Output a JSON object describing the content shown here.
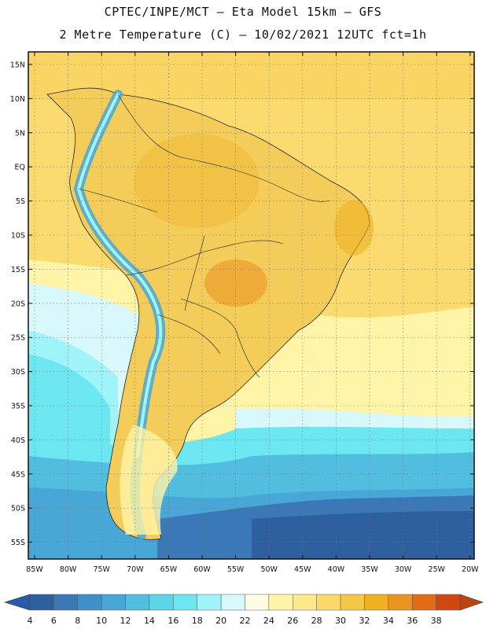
{
  "header": {
    "line1": "CPTEC/INPE/MCT –  Eta Model 15km – GFS",
    "line2": "2 Metre Temperature (C) – 10/02/2021 12UTC fct=1h"
  },
  "lat_labels": [
    "15N",
    "10N",
    "5N",
    "EQ",
    "5S",
    "10S",
    "15S",
    "20S",
    "25S",
    "30S",
    "35S",
    "40S",
    "45S",
    "50S",
    "55S"
  ],
  "lon_labels": [
    "85W",
    "80W",
    "75W",
    "70W",
    "65W",
    "60W",
    "55W",
    "50W",
    "45W",
    "40W",
    "35W",
    "30W",
    "25W",
    "20W"
  ],
  "colorbar": {
    "labels": [
      "4",
      "6",
      "8",
      "10",
      "12",
      "14",
      "16",
      "18",
      "20",
      "22",
      "24",
      "26",
      "28",
      "30",
      "32",
      "34",
      "36",
      "38"
    ],
    "colors": [
      "#2e5f9e",
      "#3a78b8",
      "#3f8fc8",
      "#48a7d6",
      "#52bedf",
      "#5ed4e8",
      "#6ce6f0",
      "#9ef4f8",
      "#d9f8fb",
      "#fffbe5",
      "#fff4a8",
      "#ffe88a",
      "#fbd968",
      "#f5c746",
      "#efb022",
      "#ea9422",
      "#e06c18",
      "#cf4812"
    ],
    "under_color": "#2a59a8",
    "over_color": "#bb4415"
  }
}
